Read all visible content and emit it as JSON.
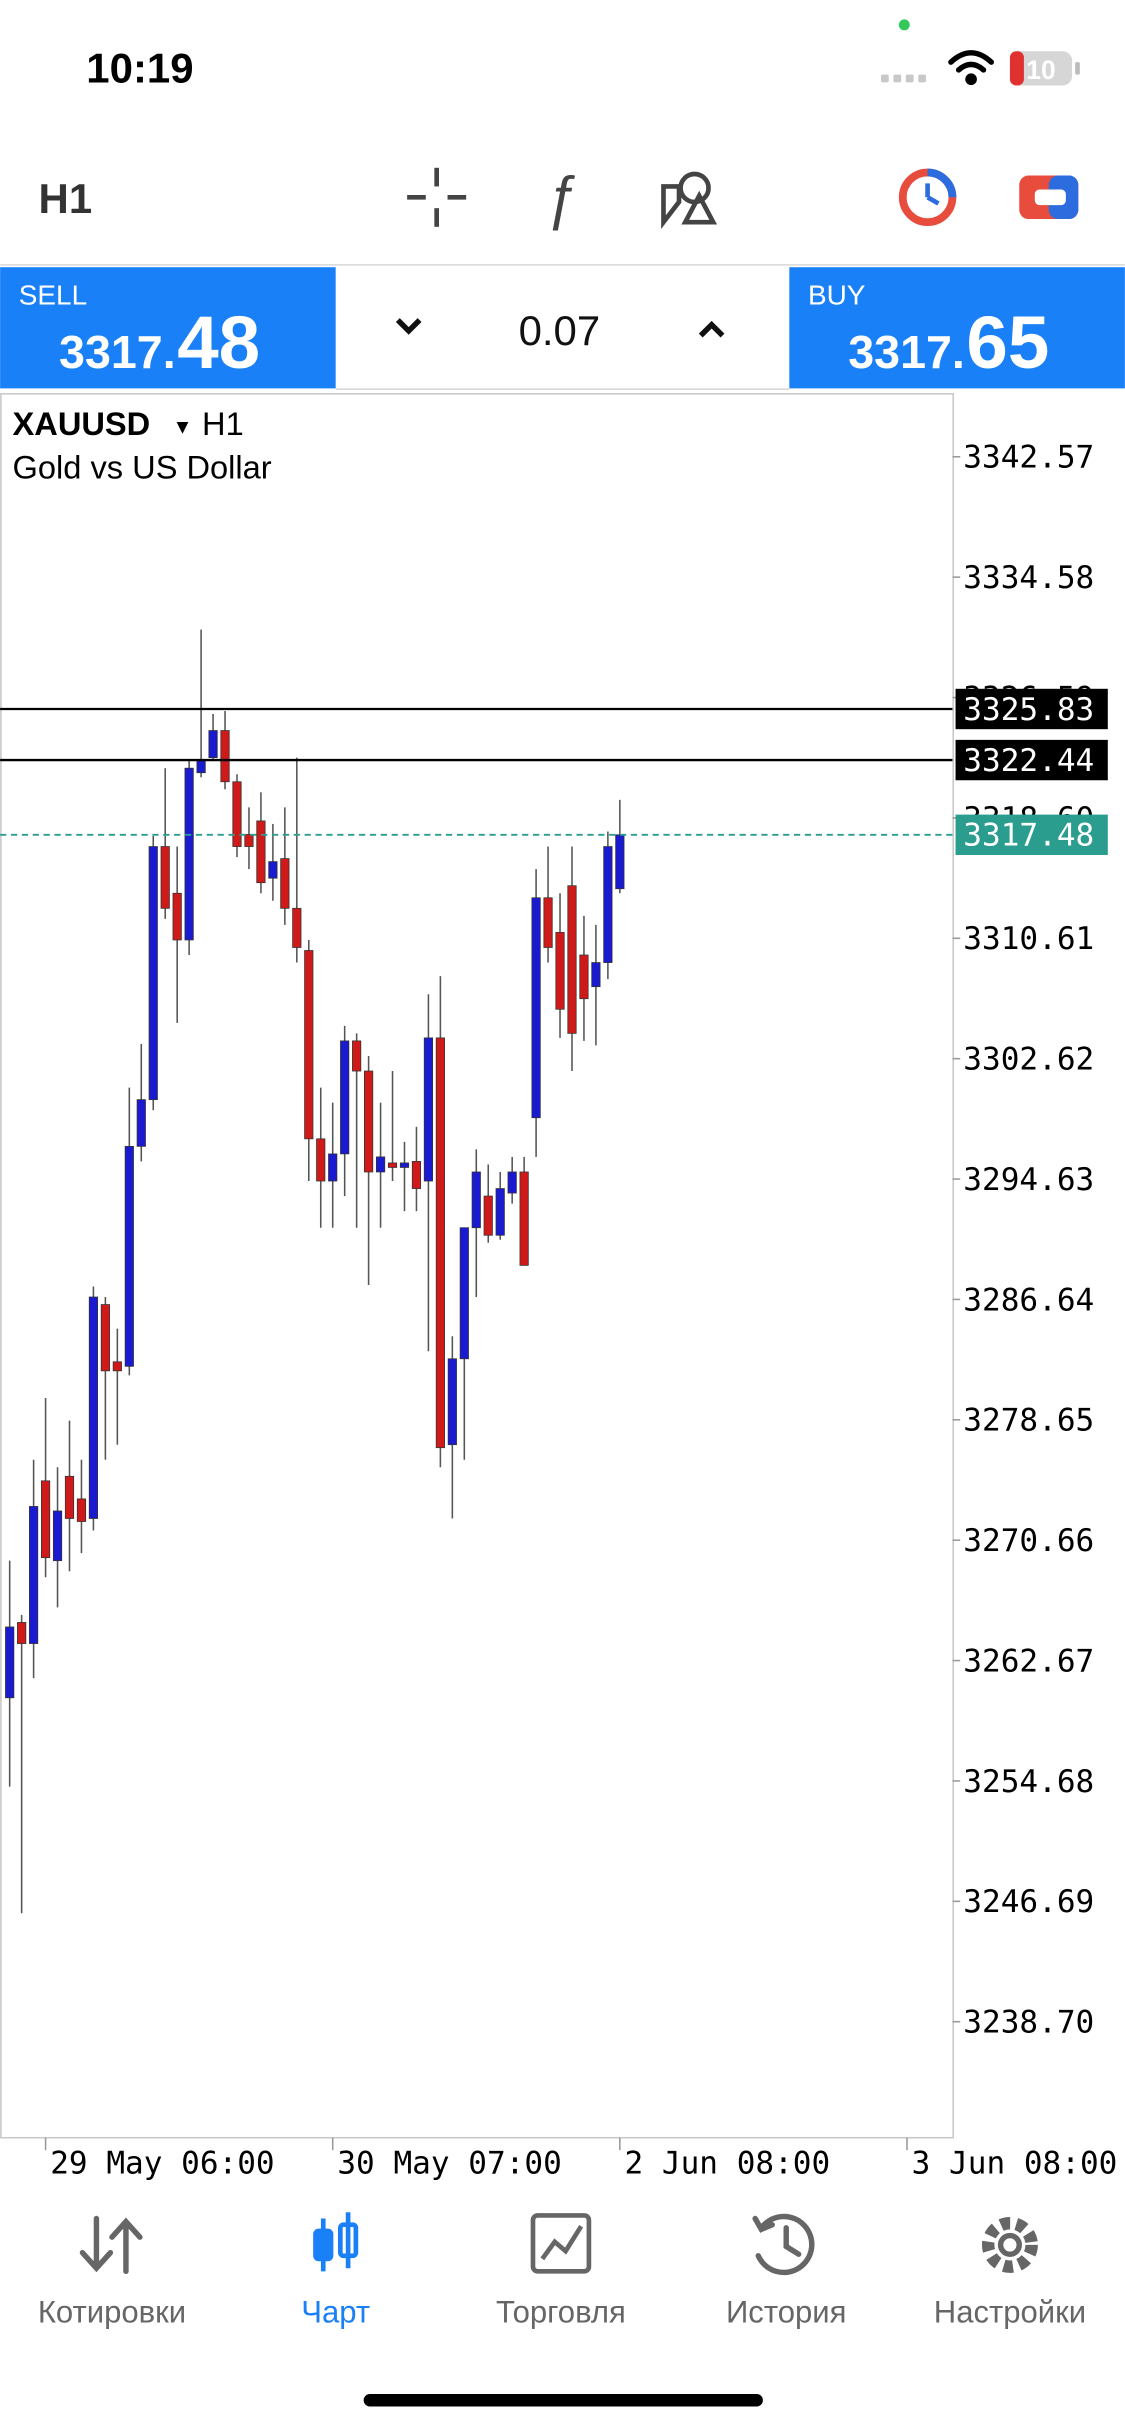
{
  "status_bar": {
    "time": "10:19",
    "battery": "10"
  },
  "toolbar": {
    "timeframe": "H1"
  },
  "trade_panel": {
    "sell_label": "SELL",
    "sell_price_main": "3317.",
    "sell_price_big": "48",
    "volume": "0.07",
    "buy_label": "BUY",
    "buy_price_main": "3317.",
    "buy_price_big": "65"
  },
  "chart_header": {
    "symbol": "XAUUSD",
    "timeframe": "H1",
    "description": "Gold vs US Dollar"
  },
  "chart_data": {
    "type": "candlestick",
    "open": [
      3260.2,
      3265.2,
      3263.8,
      3274.6,
      3269.3,
      3274.9,
      3273.4,
      3272.1,
      3286.3,
      3282.5,
      3282.2,
      3296.8,
      3299.9,
      3316.7,
      3313.6,
      3310.5,
      3321.6,
      3322.6,
      3324.4,
      3321.0,
      3317.5,
      3318.4,
      3314.6,
      3315.9,
      3312.6,
      3309.8,
      3297.3,
      3294.5,
      3296.3,
      3303.8,
      3301.8,
      3295.1,
      3295.7,
      3295.4,
      3295.8,
      3294.5,
      3304.0,
      3277.0,
      3282.7,
      3291.4,
      3293.5,
      3290.9,
      3293.7,
      3295.1,
      3298.7,
      3313.3,
      3311.0,
      3314.1,
      3309.5,
      3307.4,
      3309.0,
      3313.9
    ],
    "high": [
      3269.3,
      3265.7,
      3276.0,
      3280.1,
      3275.5,
      3278.6,
      3276.0,
      3287.5,
      3286.8,
      3284.7,
      3300.7,
      3303.6,
      3317.4,
      3321.9,
      3316.7,
      3322.4,
      3331.1,
      3325.5,
      3325.7,
      3321.5,
      3319.3,
      3320.3,
      3318.2,
      3319.3,
      3322.6,
      3310.5,
      3300.7,
      3299.7,
      3304.8,
      3304.3,
      3302.8,
      3299.7,
      3301.8,
      3297.1,
      3298.1,
      3306.9,
      3308.1,
      3284.2,
      3291.4,
      3296.6,
      3295.6,
      3295.1,
      3296.1,
      3296.1,
      3315.2,
      3316.7,
      3313.6,
      3316.7,
      3312.1,
      3311.5,
      3317.7,
      3319.8
    ],
    "low": [
      3254.3,
      3245.9,
      3261.5,
      3268.2,
      3266.2,
      3268.6,
      3269.8,
      3271.3,
      3276.0,
      3277.0,
      3281.6,
      3295.8,
      3299.2,
      3311.9,
      3305.0,
      3309.5,
      3321.3,
      3322.4,
      3320.5,
      3316.0,
      3315.2,
      3313.6,
      3313.1,
      3311.5,
      3309.0,
      3294.5,
      3291.4,
      3291.4,
      3293.5,
      3291.4,
      3287.6,
      3291.4,
      3294.5,
      3292.5,
      3292.5,
      3283.2,
      3275.5,
      3272.1,
      3276.0,
      3286.8,
      3290.4,
      3290.6,
      3293.0,
      3288.9,
      3296.1,
      3309.0,
      3304.0,
      3301.8,
      3303.8,
      3303.5,
      3307.9,
      3313.6
    ],
    "close": [
      3264.9,
      3263.8,
      3272.9,
      3269.5,
      3272.6,
      3272.1,
      3271.9,
      3286.8,
      3281.9,
      3281.9,
      3296.8,
      3299.9,
      3316.7,
      3312.6,
      3310.5,
      3321.9,
      3322.4,
      3324.4,
      3321.0,
      3316.7,
      3316.7,
      3314.3,
      3315.7,
      3312.6,
      3310.0,
      3297.3,
      3294.5,
      3296.3,
      3303.8,
      3301.8,
      3295.1,
      3296.1,
      3295.4,
      3295.7,
      3294.0,
      3304.0,
      3276.8,
      3282.7,
      3291.4,
      3295.1,
      3290.9,
      3294.0,
      3295.1,
      3288.9,
      3313.3,
      3310.0,
      3305.9,
      3304.3,
      3306.6,
      3309.0,
      3316.7,
      3317.48
    ],
    "up_color": "#1a1ad0",
    "down_color": "#d01a1a",
    "wick_color": "#555555",
    "xlim": [
      -0.8,
      78.8
    ],
    "xticks": [
      {
        "value": 3,
        "label": "29 May 06:00"
      },
      {
        "value": 27,
        "label": "30 May 07:00"
      },
      {
        "value": 51,
        "label": "2 Jun 08:00"
      },
      {
        "value": 75,
        "label": "3 Jun 08:00"
      }
    ],
    "ylim": [
      3231.0,
      3346.8
    ],
    "yticks": [
      3342.57,
      3334.58,
      3326.59,
      {
        "value": 3318.6,
        "label": "3318.60"
      },
      3310.61,
      3302.62,
      3294.63,
      3286.64,
      3278.65,
      3270.66,
      3262.67,
      3254.68,
      3246.69,
      {
        "value": 3238.7,
        "label": "3238.70"
      }
    ],
    "price_lines": [
      {
        "value": 3325.83,
        "color": "#000000"
      },
      {
        "value": 3322.44,
        "color": "#000000"
      }
    ],
    "bid_line": {
      "value": 3317.48,
      "color": "#2a9d8f"
    },
    "grid": false
  },
  "tabs": [
    {
      "label": "Котировки"
    },
    {
      "label": "Чарт"
    },
    {
      "label": "Торговля"
    },
    {
      "label": "История"
    },
    {
      "label": "Настройки"
    }
  ],
  "active_tab": 1
}
